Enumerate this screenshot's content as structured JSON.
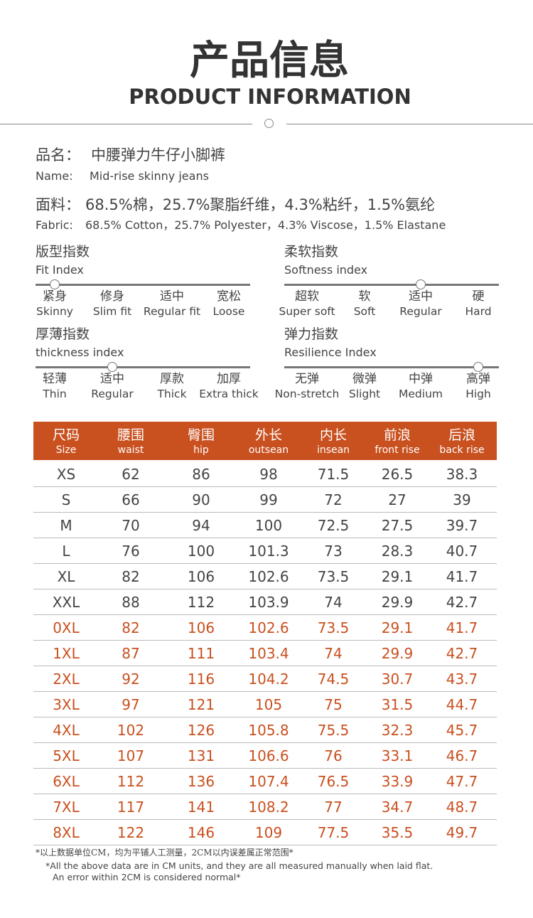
{
  "header": {
    "title_cn": "产品信息",
    "title_en": "PRODUCT INFORMATION"
  },
  "name": {
    "label_cn": "品名：",
    "value_cn": "中腰弹力牛仔小脚裤",
    "label_en": "Name:",
    "value_en": "Mid-rise skinny jeans"
  },
  "fabric": {
    "label_cn": "面料：",
    "value_cn": "68.5%棉，25.7%聚脂纤维，4.3%粘纤，1.5%氨纶",
    "label_en": "Fabric:",
    "value_en": "68.5% Cotton，25.7% Polyester，4.3% Viscose，1.5% Elastane"
  },
  "indices": [
    {
      "title_cn": "版型指数",
      "title_en": "Fit Index",
      "selected": 0,
      "options": [
        {
          "cn": "紧身",
          "en": "Skinny"
        },
        {
          "cn": "修身",
          "en": "Slim fit"
        },
        {
          "cn": "适中",
          "en": "Regular fit"
        },
        {
          "cn": "宽松",
          "en": "Loose"
        }
      ]
    },
    {
      "title_cn": "柔软指数",
      "title_en": "Softness index",
      "selected": 2,
      "options": [
        {
          "cn": "超软",
          "en": "Super soft"
        },
        {
          "cn": "软",
          "en": "Soft"
        },
        {
          "cn": "适中",
          "en": "Regular"
        },
        {
          "cn": "硬",
          "en": "Hard"
        }
      ]
    },
    {
      "title_cn": "厚薄指数",
      "title_en": "thickness index",
      "selected": 1,
      "options": [
        {
          "cn": "轻薄",
          "en": "Thin"
        },
        {
          "cn": "适中",
          "en": "Regular"
        },
        {
          "cn": "厚款",
          "en": "Thick"
        },
        {
          "cn": "加厚",
          "en": "Extra thick"
        }
      ]
    },
    {
      "title_cn": "弹力指数",
      "title_en": "Resilience Index",
      "selected": 3,
      "options": [
        {
          "cn": "无弹",
          "en": "Non-stretch"
        },
        {
          "cn": "微弹",
          "en": "Slight"
        },
        {
          "cn": "中弹",
          "en": "Medium"
        },
        {
          "cn": "高弹",
          "en": "High"
        }
      ]
    }
  ],
  "table": {
    "header": [
      {
        "cn": "尺码",
        "en": "Size"
      },
      {
        "cn": "腰围",
        "en": "waist"
      },
      {
        "cn": "臀围",
        "en": "hip"
      },
      {
        "cn": "外长",
        "en": "outsean"
      },
      {
        "cn": "内长",
        "en": "insean"
      },
      {
        "cn": "前浪",
        "en": "front rise"
      },
      {
        "cn": "后浪",
        "en": "back rise"
      }
    ],
    "rows": [
      [
        "XS",
        62,
        86,
        98,
        71.5,
        26.5,
        38.3
      ],
      [
        "S",
        66,
        90,
        99,
        72,
        27,
        39
      ],
      [
        "M",
        70,
        94,
        100,
        72.5,
        27.5,
        39.7
      ],
      [
        "L",
        76,
        100,
        101.3,
        73,
        28.3,
        40.7
      ],
      [
        "XL",
        82,
        106,
        102.6,
        73.5,
        29.1,
        41.7
      ],
      [
        "XXL",
        88,
        112,
        103.9,
        74,
        29.9,
        42.7
      ],
      [
        "0XL",
        82,
        106,
        102.6,
        73.5,
        29.1,
        41.7
      ],
      [
        "1XL",
        87,
        111,
        103.4,
        74,
        29.9,
        42.7
      ],
      [
        "2XL",
        92,
        116,
        104.2,
        74.5,
        30.7,
        43.7
      ],
      [
        "3XL",
        97,
        121,
        105,
        75,
        31.5,
        44.7
      ],
      [
        "4XL",
        102,
        126,
        105.8,
        75.5,
        32.3,
        45.7
      ],
      [
        "5XL",
        107,
        131,
        106.6,
        76,
        33.1,
        46.7
      ],
      [
        "6XL",
        112,
        136,
        107.4,
        76.5,
        33.9,
        47.7
      ],
      [
        "7XL",
        117,
        141,
        108.2,
        77,
        34.7,
        48.7
      ],
      [
        "8XL",
        122,
        146,
        109,
        77.5,
        35.5,
        49.7
      ]
    ]
  },
  "note": {
    "cn": "*以上数据单位CM，均为平铺人工测量，2CM以内误差属正常范围*",
    "en_line1": "*All the above data are in CM units, and they are all measured manually when laid flat.",
    "en_line2": "An error within 2CM is considered normal*"
  }
}
